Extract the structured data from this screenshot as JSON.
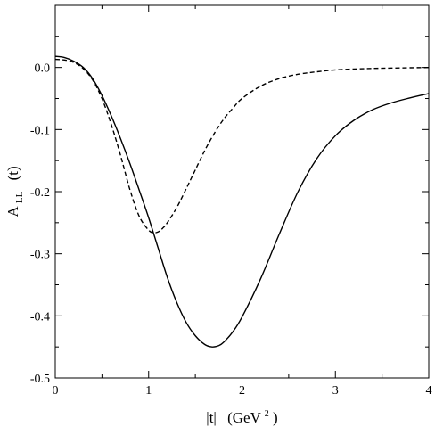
{
  "chart_data": {
    "type": "line",
    "title": "",
    "xlabel": {
      "main": "|t|",
      "unit_prefix": "(GeV",
      "unit_sup": "2",
      "unit_suffix": ")"
    },
    "ylabel": {
      "main": "A",
      "sub": "LL",
      "arg": "(t)"
    },
    "xlim": [
      0,
      4
    ],
    "ylim": [
      -0.5,
      0.1
    ],
    "grid": false,
    "legend": "none",
    "x_ticks": [
      {
        "value": 0,
        "label": "0"
      },
      {
        "value": 1,
        "label": "1"
      },
      {
        "value": 2,
        "label": "2"
      },
      {
        "value": 3,
        "label": "3"
      },
      {
        "value": 4,
        "label": "4"
      }
    ],
    "y_ticks": [
      {
        "value": 0.0,
        "label": "0.0"
      },
      {
        "value": -0.1,
        "label": "-0.1"
      },
      {
        "value": -0.2,
        "label": "-0.2"
      },
      {
        "value": -0.3,
        "label": "-0.3"
      },
      {
        "value": -0.4,
        "label": "-0.4"
      },
      {
        "value": -0.5,
        "label": "-0.5"
      }
    ],
    "series": [
      {
        "style": "solid",
        "color": "#000000",
        "x": [
          0,
          0.1,
          0.2,
          0.3,
          0.4,
          0.5,
          0.6,
          0.7,
          0.8,
          0.9,
          1.0,
          1.1,
          1.2,
          1.3,
          1.4,
          1.5,
          1.6,
          1.68,
          1.75,
          1.8,
          1.9,
          2.0,
          2.2,
          2.4,
          2.6,
          2.8,
          3.0,
          3.2,
          3.4,
          3.6,
          3.8,
          4.0
        ],
        "y": [
          0.018,
          0.016,
          0.01,
          0.0,
          -0.018,
          -0.045,
          -0.078,
          -0.115,
          -0.155,
          -0.198,
          -0.242,
          -0.29,
          -0.338,
          -0.378,
          -0.41,
          -0.432,
          -0.446,
          -0.45,
          -0.448,
          -0.443,
          -0.426,
          -0.402,
          -0.34,
          -0.268,
          -0.2,
          -0.147,
          -0.11,
          -0.085,
          -0.068,
          -0.057,
          -0.049,
          -0.042
        ]
      },
      {
        "style": "dashed",
        "color": "#000000",
        "x": [
          0,
          0.1,
          0.2,
          0.3,
          0.4,
          0.5,
          0.6,
          0.7,
          0.8,
          0.9,
          1.0,
          1.05,
          1.1,
          1.15,
          1.2,
          1.3,
          1.4,
          1.5,
          1.6,
          1.7,
          1.8,
          1.9,
          2.0,
          2.2,
          2.4,
          2.6,
          2.8,
          3.0,
          3.3,
          3.6,
          4.0
        ],
        "y": [
          0.013,
          0.012,
          0.008,
          -0.002,
          -0.02,
          -0.05,
          -0.092,
          -0.142,
          -0.197,
          -0.24,
          -0.262,
          -0.266,
          -0.265,
          -0.259,
          -0.25,
          -0.226,
          -0.196,
          -0.165,
          -0.134,
          -0.107,
          -0.084,
          -0.066,
          -0.05,
          -0.03,
          -0.018,
          -0.011,
          -0.007,
          -0.004,
          -0.002,
          -0.001,
          0.0
        ]
      }
    ]
  }
}
